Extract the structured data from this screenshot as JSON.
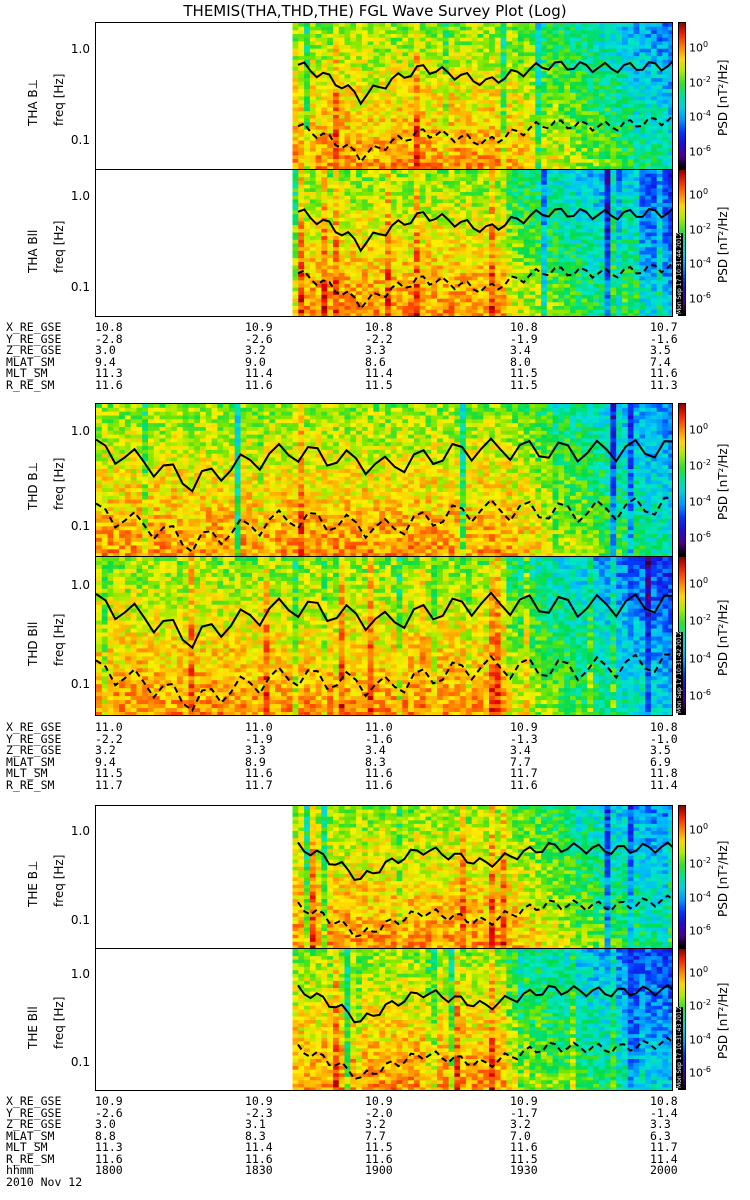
{
  "title": "THEMIS(THA,THD,THE) FGL Wave Survey Plot (Log)",
  "date_label": "2010 Nov 12",
  "colorbar": {
    "title": "PSD [nT²/Hz]",
    "ticks": [
      {
        "base": "10",
        "exp": "0"
      },
      {
        "base": "10",
        "exp": "-2"
      },
      {
        "base": "10",
        "exp": "-4"
      },
      {
        "base": "10",
        "exp": "-6"
      }
    ],
    "log_range": [
      -7,
      1.5
    ]
  },
  "y_axis": {
    "label": "freq [Hz]",
    "ticks": [
      "1.0",
      "0.1"
    ],
    "range_hz": [
      0.05,
      2
    ]
  },
  "x_axis": {
    "hhmm_label": "hhmm",
    "ticks": [
      "1800",
      "1830",
      "1900",
      "1930",
      "2000"
    ],
    "range": [
      "1800",
      "2000"
    ]
  },
  "probes": [
    {
      "id": "THA",
      "panels": [
        {
          "label": "THA B⊥"
        },
        {
          "label": "THA Bll"
        }
      ],
      "stamp": "Mon Sep 17 10:31:44 2012",
      "data_start_frac": 0.35,
      "ephemeris": {
        "labels": [
          "X_RE_GSE",
          "Y_RE_GSE",
          "Z_RE_GSE",
          "MLAT_SM",
          "MLT_SM",
          "R_RE_SM"
        ],
        "rows": [
          [
            "10.8",
            "10.9",
            "10.8",
            "10.8",
            "10.7"
          ],
          [
            "-2.8",
            "-2.6",
            "-2.2",
            "-1.9",
            "-1.6"
          ],
          [
            "3.0",
            "3.2",
            "3.3",
            "3.4",
            "3.5"
          ],
          [
            "9.4",
            "9.0",
            "8.6",
            "8.0",
            "7.4"
          ],
          [
            "11.3",
            "11.4",
            "11.4",
            "11.5",
            "11.6"
          ],
          [
            "11.6",
            "11.6",
            "11.5",
            "11.5",
            "11.3"
          ]
        ]
      }
    },
    {
      "id": "THD",
      "panels": [
        {
          "label": "THD B⊥"
        },
        {
          "label": "THD Bll"
        }
      ],
      "stamp": "Mon Sep 17 10:31:42 2012",
      "data_start_frac": 0.0,
      "ephemeris": {
        "labels": [
          "X_RE_GSE",
          "Y_RE_GSE",
          "Z_RE_GSE",
          "MLAT_SM",
          "MLT_SM",
          "R_RE_SM"
        ],
        "rows": [
          [
            "11.0",
            "11.0",
            "11.0",
            "10.9",
            "10.8"
          ],
          [
            "-2.2",
            "-1.9",
            "-1.6",
            "-1.3",
            "-1.0"
          ],
          [
            "3.2",
            "3.3",
            "3.4",
            "3.4",
            "3.5"
          ],
          [
            "9.4",
            "8.9",
            "8.3",
            "7.7",
            "6.9"
          ],
          [
            "11.5",
            "11.6",
            "11.6",
            "11.7",
            "11.8"
          ],
          [
            "11.7",
            "11.7",
            "11.6",
            "11.6",
            "11.4"
          ]
        ]
      }
    },
    {
      "id": "THE",
      "panels": [
        {
          "label": "THE B⊥"
        },
        {
          "label": "THE Bll"
        }
      ],
      "stamp": "Mon Sep 17 10:31:43 2012",
      "data_start_frac": 0.35,
      "ephemeris": {
        "labels": [
          "X_RE_GSE",
          "Y_RE_GSE",
          "Z_RE_GSE",
          "MLAT_SM",
          "MLT_SM",
          "R_RE_SM"
        ],
        "rows": [
          [
            "10.9",
            "10.9",
            "10.9",
            "10.9",
            "10.8"
          ],
          [
            "-2.6",
            "-2.3",
            "-2.0",
            "-1.7",
            "-1.4"
          ],
          [
            "3.0",
            "3.1",
            "3.2",
            "3.2",
            "3.3"
          ],
          [
            "8.8",
            "8.3",
            "7.7",
            "7.0",
            "6.3"
          ],
          [
            "11.3",
            "11.4",
            "11.5",
            "11.6",
            "11.7"
          ],
          [
            "11.6",
            "11.6",
            "11.6",
            "11.5",
            "11.4"
          ]
        ]
      }
    }
  ],
  "chart_data": {
    "type": "heatmap",
    "title": "THEMIS(THA,THD,THE) FGL Wave Survey Plot (Log)",
    "xlabel": "hhmm",
    "ylabel": "freq [Hz]",
    "x_range": [
      "1800",
      "2000"
    ],
    "y_range_hz": [
      0.05,
      2
    ],
    "y_scale": "log",
    "color_scale": "log",
    "color_range_psd": [
      1e-07,
      30
    ],
    "series": [
      {
        "name": "THA B⊥"
      },
      {
        "name": "THA Bll"
      },
      {
        "name": "THD B⊥"
      },
      {
        "name": "THD Bll"
      },
      {
        "name": "THE B⊥"
      },
      {
        "name": "THE Bll"
      }
    ],
    "overlay_lines": [
      {
        "style": "solid",
        "approx_freq_hz": [
          0.7,
          0.3,
          0.65,
          0.45,
          0.7,
          0.65,
          0.7
        ]
      },
      {
        "style": "dashed",
        "approx_freq_hz": [
          0.15,
          0.07,
          0.13,
          0.1,
          0.16,
          0.15,
          0.18
        ]
      }
    ]
  }
}
